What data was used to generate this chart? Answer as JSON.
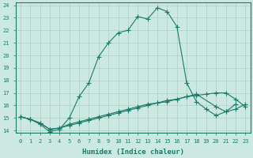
{
  "xlabel": "Humidex (Indice chaleur)",
  "bg_color": "#cce9e1",
  "grid_color": "#aacfc7",
  "line_color": "#1a7a6a",
  "xlim": [
    -0.5,
    23.5
  ],
  "ylim": [
    13.8,
    24.2
  ],
  "xticks": [
    0,
    1,
    2,
    3,
    4,
    5,
    6,
    7,
    8,
    9,
    10,
    11,
    12,
    13,
    14,
    15,
    16,
    17,
    18,
    19,
    20,
    21,
    22,
    23
  ],
  "yticks": [
    14,
    15,
    16,
    17,
    18,
    19,
    20,
    21,
    22,
    23,
    24
  ],
  "line1_x": [
    0,
    1,
    2,
    3,
    4,
    5,
    6,
    7,
    8,
    9,
    10,
    11,
    12,
    13,
    14,
    15,
    16,
    17,
    18,
    19,
    20,
    21,
    22
  ],
  "line1_y": [
    15.1,
    14.9,
    14.5,
    13.9,
    14.1,
    15.0,
    16.7,
    17.8,
    19.9,
    21.0,
    21.8,
    22.0,
    23.1,
    22.9,
    23.8,
    23.5,
    22.3,
    17.8,
    16.3,
    15.7,
    15.2,
    15.5,
    16.1
  ],
  "line2_x": [
    0,
    1,
    2,
    3,
    4,
    5,
    6,
    7,
    8,
    9,
    10,
    11,
    12,
    13,
    14,
    15,
    16,
    17,
    18,
    20,
    21,
    22,
    23
  ],
  "line2_y": [
    15.1,
    14.9,
    14.6,
    14.1,
    14.2,
    14.4,
    14.6,
    14.8,
    15.0,
    15.2,
    15.4,
    15.6,
    15.8,
    16.0,
    16.2,
    16.3,
    16.5,
    16.7,
    16.9,
    15.9,
    15.5,
    15.7,
    16.1
  ],
  "line3_x": [
    0,
    1,
    2,
    3,
    4,
    5,
    6,
    7,
    8,
    9,
    10,
    11,
    12,
    13,
    14,
    15,
    16,
    17,
    18,
    19,
    20,
    21,
    22,
    23
  ],
  "line3_y": [
    15.1,
    14.9,
    14.6,
    14.1,
    14.2,
    14.5,
    14.7,
    14.9,
    15.1,
    15.3,
    15.5,
    15.7,
    15.9,
    16.1,
    16.2,
    16.4,
    16.5,
    16.7,
    16.8,
    16.9,
    17.0,
    17.0,
    16.5,
    15.9
  ]
}
